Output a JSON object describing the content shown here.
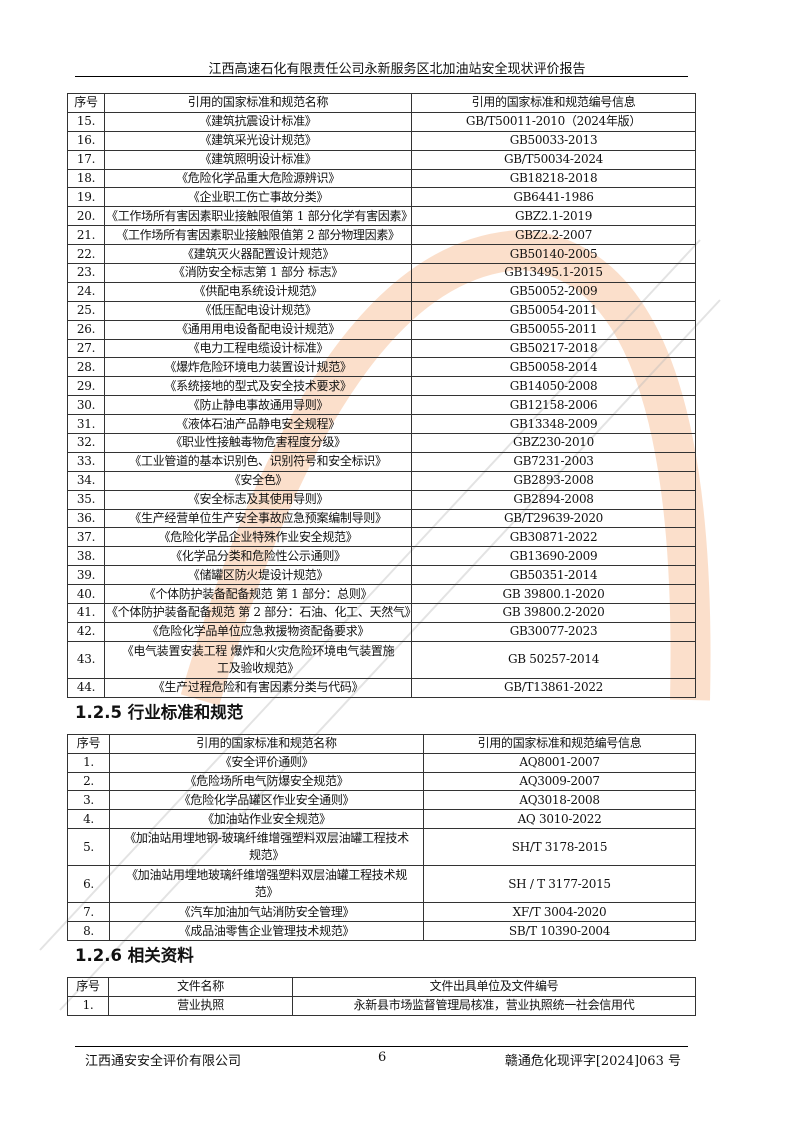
{
  "header": {
    "title": "江西高速石化有限责任公司永新服务区北加油站安全现状评价报告"
  },
  "table_national": {
    "headers": [
      "序号",
      "引用的国家标准和规范名称",
      "引用的国家标准和规范编号信息"
    ],
    "rows": [
      [
        "15.",
        "《建筑抗震设计标准》",
        "GB/T50011-2010（2024年版）"
      ],
      [
        "16.",
        "《建筑采光设计规范》",
        "GB50033-2013"
      ],
      [
        "17.",
        "《建筑照明设计标准》",
        "GB/T50034-2024"
      ],
      [
        "18.",
        "《危险化学品重大危险源辨识》",
        "GB18218-2018"
      ],
      [
        "19.",
        "《企业职工伤亡事故分类》",
        "GB6441-1986"
      ],
      [
        "20.",
        "《工作场所有害因素职业接触限值第 1 部分化学有害因素》",
        "GBZ2.1-2019"
      ],
      [
        "21.",
        "《工作场所有害因素职业接触限值第 2 部分物理因素》",
        "GBZ2.2-2007"
      ],
      [
        "22.",
        "《建筑灭火器配置设计规范》",
        "GB50140-2005"
      ],
      [
        "23.",
        "《消防安全标志第 1 部分  标志》",
        "GB13495.1-2015"
      ],
      [
        "24.",
        "《供配电系统设计规范》",
        "GB50052-2009"
      ],
      [
        "25.",
        "《低压配电设计规范》",
        "GB50054-2011"
      ],
      [
        "26.",
        "《通用用电设备配电设计规范》",
        "GB50055-2011"
      ],
      [
        "27.",
        "《电力工程电缆设计标准》",
        "GB50217-2018"
      ],
      [
        "28.",
        "《爆炸危险环境电力装置设计规范》",
        "GB50058-2014"
      ],
      [
        "29.",
        "《系统接地的型式及安全技术要求》",
        "GB14050-2008"
      ],
      [
        "30.",
        "《防止静电事故通用导则》",
        "GB12158-2006"
      ],
      [
        "31.",
        "《液体石油产品静电安全规程》",
        "GB13348-2009"
      ],
      [
        "32.",
        "《职业性接触毒物危害程度分级》",
        "GBZ230-2010"
      ],
      [
        "33.",
        "《工业管道的基本识别色、识别符号和安全标识》",
        "GB7231-2003"
      ],
      [
        "34.",
        "《安全色》",
        "GB2893-2008"
      ],
      [
        "35.",
        "《安全标志及其使用导则》",
        "GB2894-2008"
      ],
      [
        "36.",
        "《生产经营单位生产安全事故应急预案编制导则》",
        "GB/T29639-2020"
      ],
      [
        "37.",
        "《危险化学品企业特殊作业安全规范》",
        "GB30871-2022"
      ],
      [
        "38.",
        "《化学品分类和危险性公示通则》",
        "GB13690-2009"
      ],
      [
        "39.",
        "《储罐区防火堤设计规范》",
        "GB50351-2014"
      ],
      [
        "40.",
        "《个体防护装备配备规范 第 1 部分：总则》",
        "GB 39800.1-2020"
      ],
      [
        "41.",
        "《个体防护装备配备规范 第 2 部分：石油、化工、天然气》",
        "GB 39800.2-2020"
      ],
      [
        "42.",
        "《危险化学品单位应急救援物资配备要求》",
        "GB30077-2023"
      ],
      [
        "43.",
        "《电气装置安装工程 爆炸和火灾危险环境电气装置施工及验收规范》",
        "GB 50257-2014"
      ],
      [
        "44.",
        "《生产过程危险和有害因素分类与代码》",
        "GB/T13861-2022"
      ]
    ]
  },
  "section_industry": {
    "heading": "1.2.5 行业标准和规范"
  },
  "table_industry": {
    "headers": [
      "序号",
      "引用的国家标准和规范名称",
      "引用的国家标准和规范编号信息"
    ],
    "rows": [
      [
        "1.",
        "《安全评价通则》",
        "AQ8001-2007"
      ],
      [
        "2.",
        "《危险场所电气防爆安全规范》",
        "AQ3009-2007"
      ],
      [
        "3.",
        "《危险化学品罐区作业安全通则》",
        "AQ3018-2008"
      ],
      [
        "4.",
        "《加油站作业安全规范》",
        "AQ 3010-2022"
      ],
      [
        "5.",
        "《加油站用埋地钢-玻璃纤维增强塑料双层油罐工程技术规范》",
        "SH/T 3178-2015"
      ],
      [
        "6.",
        "《加油站用埋地玻璃纤维增强塑料双层油罐工程技术规范》",
        "SH / T 3177-2015"
      ],
      [
        "7.",
        "《汽车加油加气站消防安全管理》",
        "XF/T 3004-2020"
      ],
      [
        "8.",
        "《成品油零售企业管理技术规范》",
        "SB/T 10390-2004"
      ]
    ]
  },
  "section_docs": {
    "heading": "1.2.6 相关资料"
  },
  "table_docs": {
    "headers": [
      "序号",
      "文件名称",
      "文件出具单位及文件编号"
    ],
    "rows": [
      [
        "1.",
        "营业执照",
        "永新县市场监督管理局核准，营业执照统一社会信用代"
      ]
    ]
  },
  "watermark": {
    "text": "江西通安安全评价有限公司",
    "colors": {
      "arc": "#f4a46a",
      "text": "#e05050",
      "gray": "#bbbbbb"
    }
  },
  "footer": {
    "company": "江西通安安全评价有限公司",
    "page": "6",
    "doc_no": "赣通危化现评字[2024]063 号"
  }
}
